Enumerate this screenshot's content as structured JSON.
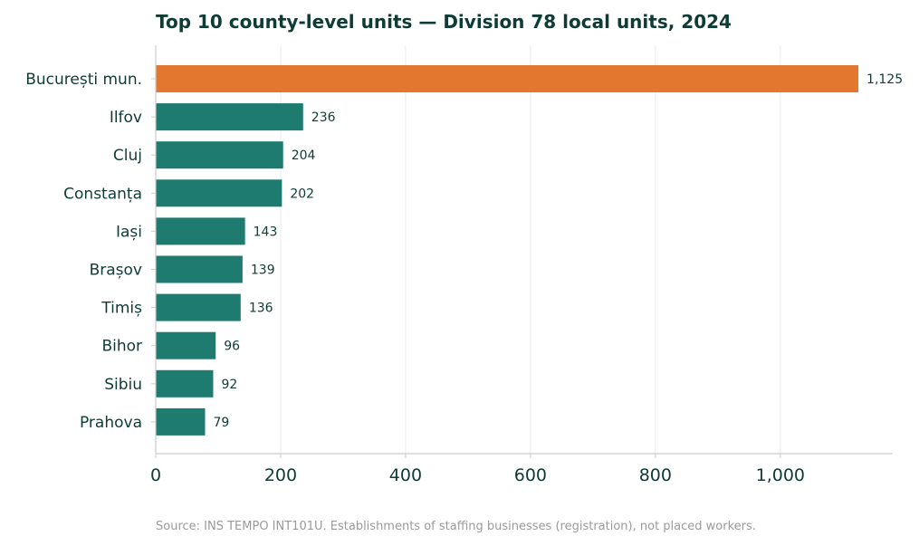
{
  "chart_data": {
    "type": "bar",
    "orientation": "horizontal",
    "title": "Top 10 county-level units — Division 78 local units, 2024",
    "xlabel": "",
    "ylabel": "",
    "categories": [
      "București mun.",
      "Ilfov",
      "Cluj",
      "Constanța",
      "Iași",
      "Brașov",
      "Timiș",
      "Bihor",
      "Sibiu",
      "Prahova"
    ],
    "values": [
      1125,
      236,
      204,
      202,
      143,
      139,
      136,
      96,
      92,
      79
    ],
    "value_labels": [
      "1,125",
      "236",
      "204",
      "202",
      "143",
      "139",
      "136",
      "96",
      "92",
      "79"
    ],
    "xlim": [
      0,
      1180
    ],
    "xticks": [
      0,
      200,
      400,
      600,
      800,
      1000
    ],
    "xtick_labels": [
      "0",
      "200",
      "400",
      "600",
      "800",
      "1,000"
    ],
    "grid": "vertical",
    "highlight_category": "București mun.",
    "colors": {
      "highlight": "#e3772f",
      "bar": "#1e7b70",
      "text": "#0f3b35",
      "grid": "#e4e4e4",
      "axis": "#cccccc",
      "source": "#9a9a9a"
    },
    "source_note": "Source: INS TEMPO INT101U. Establishments of staffing businesses (registration), not placed workers."
  }
}
